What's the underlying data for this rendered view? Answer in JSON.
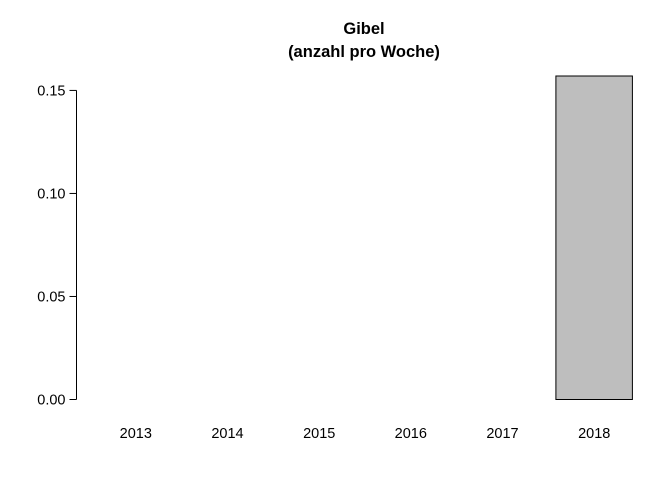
{
  "chart_data": {
    "type": "bar",
    "title": "Gibel",
    "subtitle": "(anzahl pro Woche)",
    "xlabel": "",
    "ylabel": "",
    "categories": [
      "2013",
      "2014",
      "2015",
      "2016",
      "2017",
      "2018"
    ],
    "values": [
      0,
      0,
      0,
      0,
      0,
      0.157
    ],
    "ylim": [
      0,
      0.157
    ],
    "yticks": [
      0,
      0.05,
      0.1,
      0.15
    ],
    "ytick_labels": [
      "0.00",
      "0.05",
      "0.10",
      "0.15"
    ],
    "grid": false,
    "legend": "none",
    "colors": {
      "bar_fill": "#bebebe",
      "bar_stroke": "#000000",
      "axis": "#000000"
    }
  }
}
